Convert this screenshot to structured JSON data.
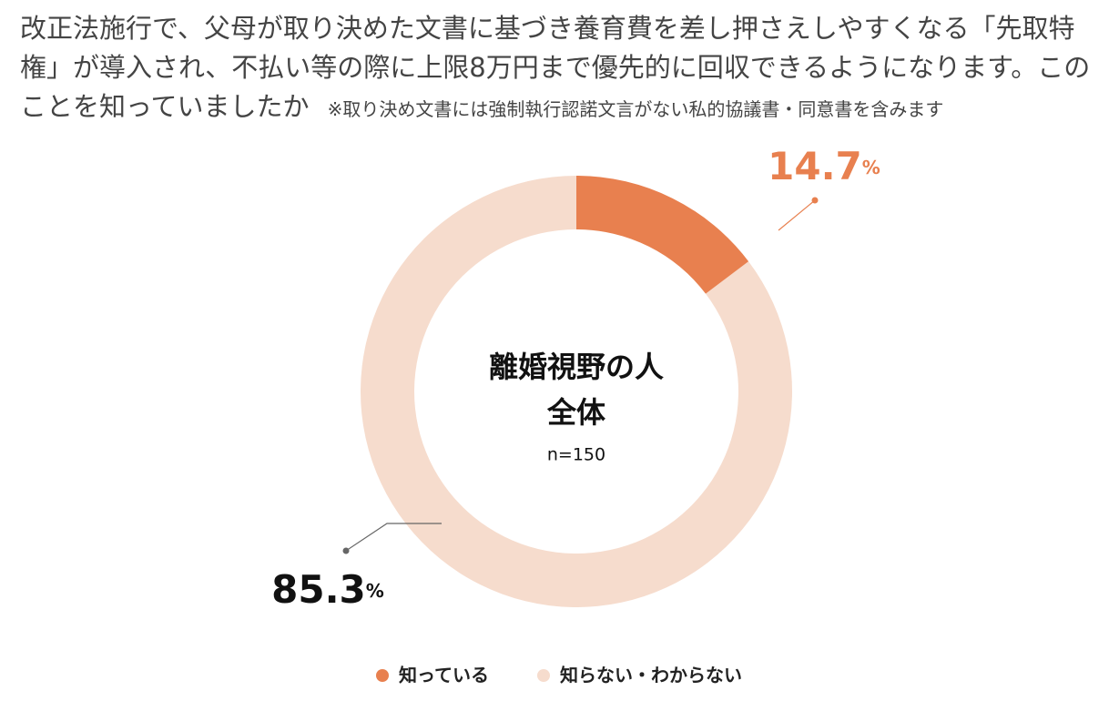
{
  "chart_data": {
    "type": "donut",
    "title": "改正法施行で、父母が取り決めた文書に基づき養育費を差し押さえしやすくなる「先取特権」が導入され、不払い等の際に上限8万円まで優先的に回収できるようになります。このことを知っていましたか",
    "note": "※取り決め文書には強制執行認諾文言がない私的協議書・同意書を含みます",
    "center_title": [
      "離婚視野の人",
      "全体"
    ],
    "center_note": "n=150",
    "categories": [
      "知っている",
      "知らない・わからない"
    ],
    "values": [
      14.7,
      85.3
    ],
    "value_suffix": "%",
    "colors": [
      "#e8804f",
      "#f6dccd"
    ],
    "label_colors": [
      "#e8804f",
      "#111111"
    ]
  }
}
